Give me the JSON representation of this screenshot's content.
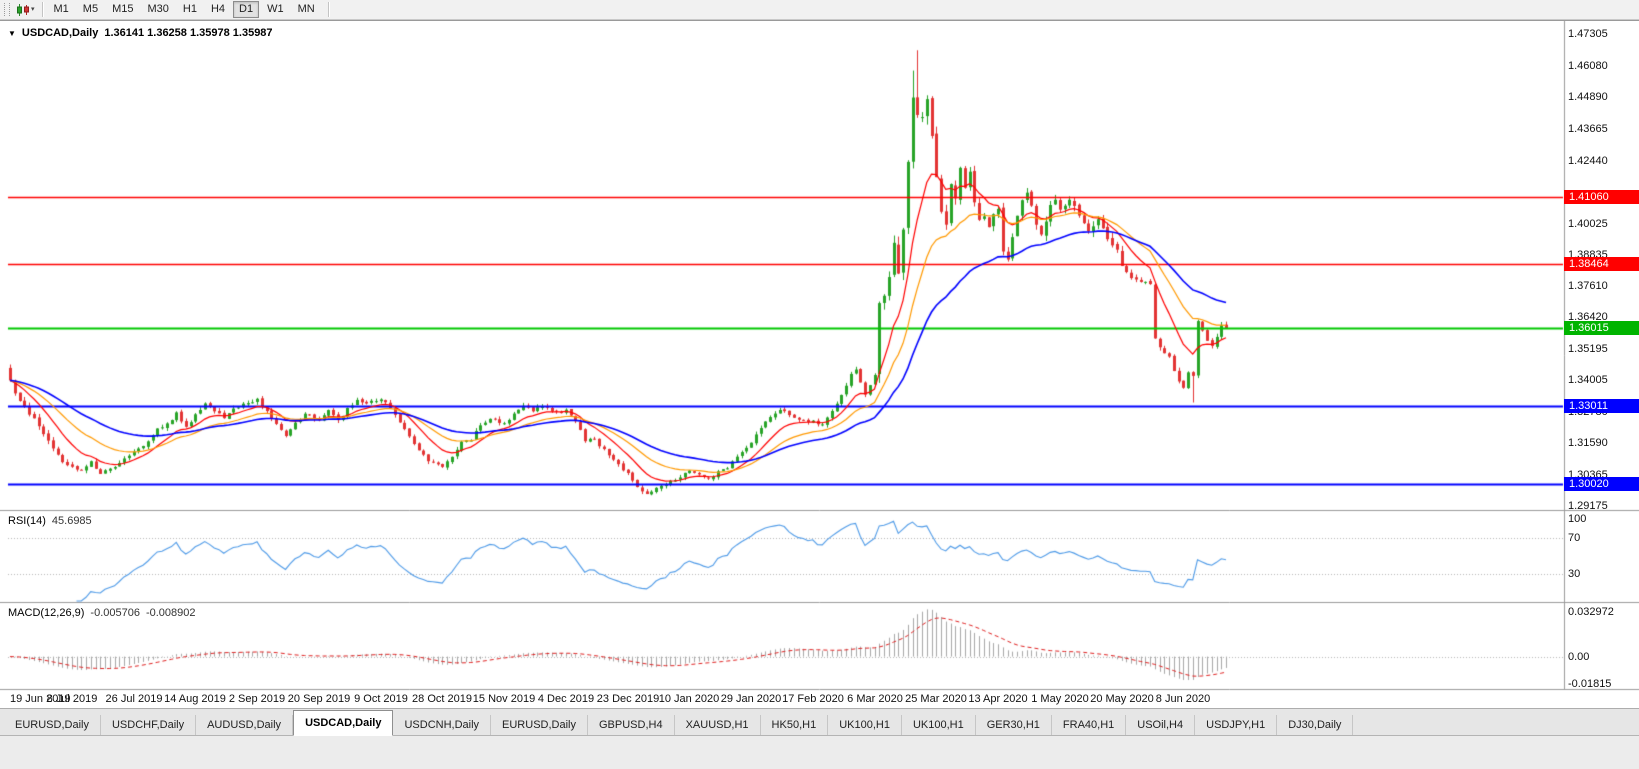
{
  "toolbar": {
    "timeframes": [
      "M1",
      "M5",
      "M15",
      "M30",
      "H1",
      "H4",
      "D1",
      "W1",
      "MN"
    ],
    "active_timeframe": "D1"
  },
  "chart": {
    "title": "USDCAD,Daily",
    "ohlc_text": "1.36141 1.36258 1.35978 1.35987"
  },
  "price_axis": {
    "ticks": [
      "1.47305",
      "1.46080",
      "1.44890",
      "1.43665",
      "1.42440",
      "1.40025",
      "1.38835",
      "1.37610",
      "1.36420",
      "1.35195",
      "1.34005",
      "1.32780",
      "1.31590",
      "1.30365",
      "1.29175"
    ],
    "tags": [
      {
        "text": "1.41060",
        "price": 1.4106,
        "color": "#ff0000"
      },
      {
        "text": "1.38464",
        "price": 1.38464,
        "color": "#ff0000"
      },
      {
        "text": "1.36015",
        "price": 1.36015,
        "color": "#00b400"
      },
      {
        "text": "1.33011",
        "price": 1.33011,
        "color": "#0000ff"
      },
      {
        "text": "1.30020",
        "price": 1.3002,
        "color": "#0000ff"
      }
    ]
  },
  "date_axis": {
    "labels": [
      {
        "text": "19 Jun 2019",
        "day": 0
      },
      {
        "text": "8 Jul 2019",
        "day": 13
      },
      {
        "text": "26 Jul 2019",
        "day": 26
      },
      {
        "text": "14 Aug 2019",
        "day": 39
      },
      {
        "text": "2 Sep 2019",
        "day": 52
      },
      {
        "text": "20 Sep 2019",
        "day": 65
      },
      {
        "text": "9 Oct 2019",
        "day": 78
      },
      {
        "text": "28 Oct 2019",
        "day": 91
      },
      {
        "text": "15 Nov 2019",
        "day": 104
      },
      {
        "text": "4 Dec 2019",
        "day": 117
      },
      {
        "text": "23 Dec 2019",
        "day": 130
      },
      {
        "text": "10 Jan 2020",
        "day": 143
      },
      {
        "text": "29 Jan 2020",
        "day": 156
      },
      {
        "text": "17 Feb 2020",
        "day": 169
      },
      {
        "text": "6 Mar 2020",
        "day": 182
      },
      {
        "text": "25 Mar 2020",
        "day": 195
      },
      {
        "text": "13 Apr 2020",
        "day": 208
      },
      {
        "text": "1 May 2020",
        "day": 221
      },
      {
        "text": "20 May 2020",
        "day": 234
      },
      {
        "text": "8 Jun 2020",
        "day": 247
      }
    ]
  },
  "indicators": {
    "rsi": {
      "label": "RSI(14)",
      "value": "45.6985",
      "levels": [
        70,
        30
      ],
      "axis_labels": [
        {
          "text": "100",
          "value": 100
        },
        {
          "text": "70",
          "value": 70
        },
        {
          "text": "30",
          "value": 30
        }
      ],
      "color": "#4f9be8"
    },
    "macd": {
      "label": "MACD(12,26,9)",
      "value_main": "-0.005706",
      "value_signal": "-0.008902",
      "axis_labels": [
        {
          "text": "0.032972",
          "value": 0.032972
        },
        {
          "text": "0.00",
          "value": 0
        },
        {
          "text": "-0.01815",
          "value": -0.01815
        }
      ],
      "histogram_color": "#a8a8a8",
      "signal_color": "#e02020"
    }
  },
  "chart_data": {
    "type": "candlestick",
    "symbol": "USDCAD",
    "period": "Daily",
    "candle_count": 257,
    "candle_up_color": "#28a428",
    "candle_down_color": "#e33434",
    "price_range": {
      "top": 1.475,
      "bottom": 1.2895
    },
    "horizontal_lines": [
      {
        "price": 1.4106,
        "color": "#ff0000",
        "width": 1.6
      },
      {
        "price": 1.38464,
        "color": "#ff0000",
        "width": 1.6
      },
      {
        "price": 1.36015,
        "color": "#00c800",
        "width": 2
      },
      {
        "price": 1.33011,
        "color": "#0000ff",
        "width": 2
      },
      {
        "price": 1.3002,
        "color": "#0000ff",
        "width": 2
      }
    ],
    "moving_averages": [
      {
        "period": 10,
        "method": "ema",
        "color": "#ff0000"
      },
      {
        "period": 21,
        "method": "ema",
        "color": "#ff9900"
      },
      {
        "period": 40,
        "method": "ema",
        "color": "#0000ff"
      }
    ],
    "close_anchors": [
      [
        0,
        1.34
      ],
      [
        1,
        1.335
      ],
      [
        3,
        1.3295
      ],
      [
        5,
        1.3255
      ],
      [
        7,
        1.3195
      ],
      [
        9,
        1.3135
      ],
      [
        11,
        1.309
      ],
      [
        13,
        1.3068
      ],
      [
        15,
        1.3052
      ],
      [
        17,
        1.3088
      ],
      [
        19,
        1.3042
      ],
      [
        21,
        1.3058
      ],
      [
        23,
        1.3082
      ],
      [
        26,
        1.3125
      ],
      [
        29,
        1.3162
      ],
      [
        31,
        1.321
      ],
      [
        33,
        1.3232
      ],
      [
        35,
        1.3272
      ],
      [
        37,
        1.3222
      ],
      [
        39,
        1.3268
      ],
      [
        41,
        1.3312
      ],
      [
        43,
        1.3282
      ],
      [
        45,
        1.3258
      ],
      [
        47,
        1.3288
      ],
      [
        49,
        1.3312
      ],
      [
        52,
        1.3326
      ],
      [
        54,
        1.3282
      ],
      [
        56,
        1.3232
      ],
      [
        58,
        1.3192
      ],
      [
        60,
        1.3232
      ],
      [
        62,
        1.3272
      ],
      [
        65,
        1.3242
      ],
      [
        67,
        1.3282
      ],
      [
        69,
        1.3242
      ],
      [
        71,
        1.3292
      ],
      [
        73,
        1.3322
      ],
      [
        75,
        1.3312
      ],
      [
        78,
        1.3332
      ],
      [
        80,
        1.3292
      ],
      [
        82,
        1.3242
      ],
      [
        84,
        1.3182
      ],
      [
        86,
        1.3132
      ],
      [
        88,
        1.3092
      ],
      [
        91,
        1.3072
      ],
      [
        93,
        1.3112
      ],
      [
        95,
        1.3162
      ],
      [
        97,
        1.3172
      ],
      [
        99,
        1.3232
      ],
      [
        101,
        1.3252
      ],
      [
        104,
        1.3232
      ],
      [
        106,
        1.3272
      ],
      [
        108,
        1.3302
      ],
      [
        110,
        1.3282
      ],
      [
        112,
        1.3302
      ],
      [
        114,
        1.3282
      ],
      [
        117,
        1.3282
      ],
      [
        119,
        1.3242
      ],
      [
        121,
        1.3172
      ],
      [
        123,
        1.3168
      ],
      [
        125,
        1.3132
      ],
      [
        127,
        1.3092
      ],
      [
        130,
        1.3042
      ],
      [
        132,
        1.2992
      ],
      [
        134,
        1.2962
      ],
      [
        136,
        1.2982
      ],
      [
        138,
        1.3002
      ],
      [
        140,
        1.3022
      ],
      [
        143,
        1.3052
      ],
      [
        145,
        1.3042
      ],
      [
        147,
        1.3022
      ],
      [
        149,
        1.3046
      ],
      [
        151,
        1.3062
      ],
      [
        153,
        1.3112
      ],
      [
        156,
        1.3162
      ],
      [
        158,
        1.3222
      ],
      [
        160,
        1.3262
      ],
      [
        162,
        1.3292
      ],
      [
        164,
        1.3272
      ],
      [
        166,
        1.3252
      ],
      [
        169,
        1.3242
      ],
      [
        171,
        1.3232
      ],
      [
        173,
        1.3282
      ],
      [
        175,
        1.3342
      ],
      [
        177,
        1.3422
      ],
      [
        178,
        1.3446
      ],
      [
        180,
        1.3342
      ],
      [
        182,
        1.3426
      ],
      [
        183,
        1.37
      ],
      [
        184,
        1.3736
      ],
      [
        185,
        1.3792
      ],
      [
        186,
        1.3922
      ],
      [
        187,
        1.3806
      ],
      [
        188,
        1.3982
      ],
      [
        189,
        1.4242
      ],
      [
        190,
        1.449
      ],
      [
        191,
        1.4432
      ],
      [
        192,
        1.4402
      ],
      [
        193,
        1.4482
      ],
      [
        194,
        1.4322
      ],
      [
        195,
        1.4192
      ],
      [
        196,
        1.4062
      ],
      [
        197,
        1.3982
      ],
      [
        198,
        1.4162
      ],
      [
        199,
        1.4092
      ],
      [
        200,
        1.4212
      ],
      [
        201,
        1.4132
      ],
      [
        202,
        1.4212
      ],
      [
        203,
        1.4092
      ],
      [
        204,
        1.4022
      ],
      [
        205,
        1.4032
      ],
      [
        206,
        1.3992
      ],
      [
        207,
        1.4042
      ],
      [
        208,
        1.4062
      ],
      [
        209,
        1.3902
      ],
      [
        210,
        1.3872
      ],
      [
        211,
        1.3952
      ],
      [
        212,
        1.4032
      ],
      [
        213,
        1.4082
      ],
      [
        214,
        1.4112
      ],
      [
        215,
        1.4062
      ],
      [
        216,
        1.4002
      ],
      [
        217,
        1.3962
      ],
      [
        218,
        1.4012
      ],
      [
        219,
        1.4072
      ],
      [
        220,
        1.4092
      ],
      [
        221,
        1.4062
      ],
      [
        223,
        1.4092
      ],
      [
        225,
        1.4032
      ],
      [
        227,
        1.3982
      ],
      [
        229,
        1.4022
      ],
      [
        231,
        1.3932
      ],
      [
        233,
        1.3892
      ],
      [
        234,
        1.3842
      ],
      [
        236,
        1.3796
      ],
      [
        238,
        1.3772
      ],
      [
        240,
        1.3776
      ],
      [
        241,
        1.3562
      ],
      [
        242,
        1.3522
      ],
      [
        243,
        1.3502
      ],
      [
        244,
        1.3496
      ],
      [
        245,
        1.3432
      ],
      [
        246,
        1.3392
      ],
      [
        247,
        1.3372
      ],
      [
        248,
        1.3432
      ],
      [
        249,
        1.3412
      ],
      [
        250,
        1.3622
      ],
      [
        251,
        1.3596
      ],
      [
        252,
        1.3552
      ],
      [
        253,
        1.3532
      ],
      [
        254,
        1.3572
      ],
      [
        255,
        1.3606
      ],
      [
        256,
        1.35987
      ]
    ],
    "extremes": [
      {
        "day": 190,
        "high": 1.459
      },
      {
        "day": 191,
        "high": 1.4668
      },
      {
        "day": 249,
        "low": 1.3315
      }
    ],
    "last_candle": {
      "open": 1.36141,
      "high": 1.36258,
      "low": 1.35978,
      "close": 1.35987
    }
  },
  "tabbar": {
    "tabs": [
      "EURUSD,Daily",
      "USDCHF,Daily",
      "AUDUSD,Daily",
      "USDCAD,Daily",
      "USDCNH,Daily",
      "EURUSD,Daily",
      "GBPUSD,H4",
      "XAUUSD,H1",
      "HK50,H1",
      "UK100,H1",
      "UK100,H1",
      "GER30,H1",
      "FRA40,H1",
      "USOil,H4",
      "USDJPY,H1",
      "DJ30,Daily"
    ],
    "active_index": 3
  }
}
